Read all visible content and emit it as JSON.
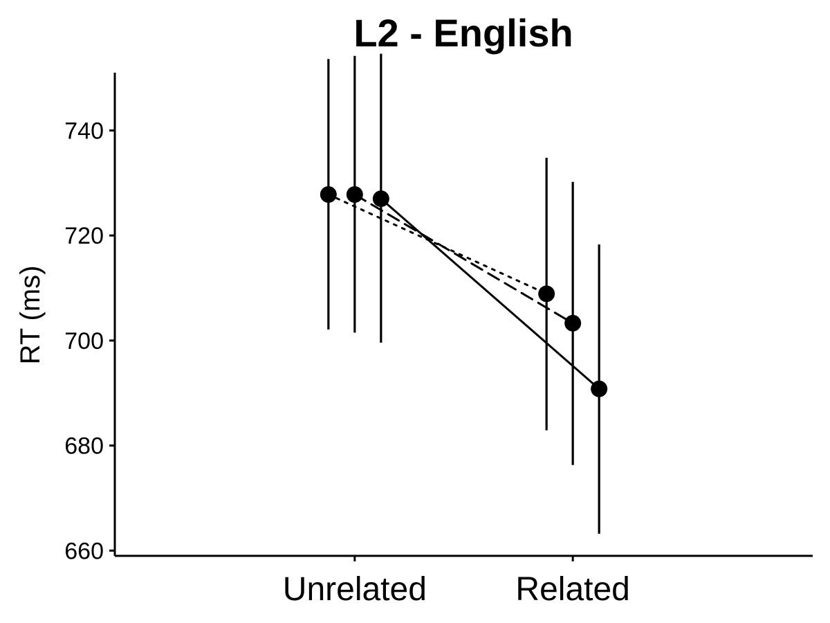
{
  "chart_data": {
    "type": "line",
    "title": "L2 - English",
    "xlabel": "",
    "ylabel": "RT (ms)",
    "categories": [
      "Unrelated",
      "Related"
    ],
    "ylim": [
      659,
      751
    ],
    "yticks": [
      660,
      680,
      700,
      720,
      740
    ],
    "grid": false,
    "legend": "none",
    "series": [
      {
        "line_style": "dotted",
        "values": [
          727.8,
          708.9
        ],
        "error_low": [
          702.1,
          682.9
        ],
        "error_high": [
          753.6,
          734.8
        ]
      },
      {
        "line_style": "dashed",
        "values": [
          727.8,
          703.3
        ],
        "error_low": [
          701.5,
          676.3
        ],
        "error_high": [
          754.2,
          730.2
        ]
      },
      {
        "line_style": "solid",
        "values": [
          727.0,
          690.8
        ],
        "error_low": [
          699.6,
          663.2
        ],
        "error_high": [
          754.6,
          718.3
        ]
      }
    ],
    "colors": {
      "ink": "#000000",
      "background": "#ffffff"
    }
  }
}
